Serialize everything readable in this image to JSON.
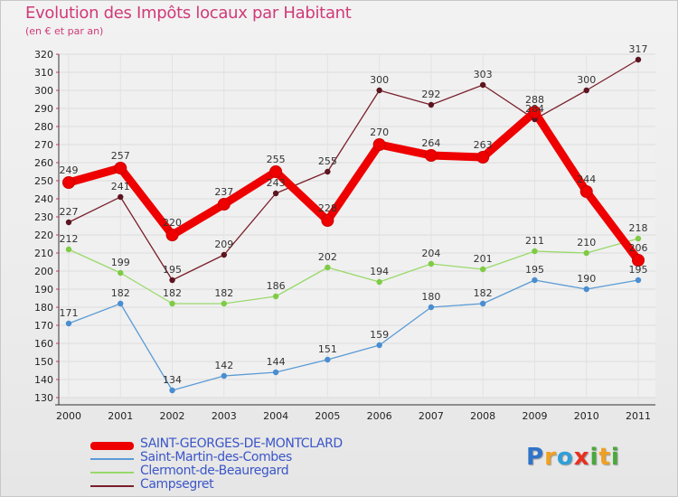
{
  "title": "Evolution des Impôts locaux par Habitant",
  "subtitle": "(en € et par an)",
  "logo": {
    "text": "Proxiti",
    "letters": [
      {
        "ch": "P",
        "color": "#2f74c9"
      },
      {
        "ch": "r",
        "color": "#f0a020"
      },
      {
        "ch": "o",
        "color": "#2f9fd8"
      },
      {
        "ch": "x",
        "color": "#e83020"
      },
      {
        "ch": "i",
        "color": "#4aa83c"
      },
      {
        "ch": "t",
        "color": "#f0a020"
      },
      {
        "ch": "i",
        "color": "#4aa83c"
      }
    ]
  },
  "chart_data": {
    "type": "line",
    "title": "Evolution des Impôts locaux par Habitant",
    "subtitle": "(en € et par an)",
    "x": [
      "2000",
      "2001",
      "2002",
      "2003",
      "2004",
      "2005",
      "2006",
      "2007",
      "2008",
      "2009",
      "2010",
      "2011"
    ],
    "ylim": [
      130,
      320
    ],
    "yticks": [
      130,
      140,
      150,
      160,
      170,
      180,
      190,
      200,
      210,
      220,
      230,
      240,
      250,
      260,
      270,
      280,
      290,
      300,
      310,
      320
    ],
    "grid": true,
    "legend_position": "bottom-left",
    "series": [
      {
        "name": "SAINT-GEORGES-DE-MONTCLARD",
        "color": "#ee0000",
        "values": [
          249,
          257,
          220,
          237,
          255,
          228,
          270,
          264,
          263,
          288,
          244,
          206
        ]
      },
      {
        "name": "Saint-Martin-des-Combes",
        "color": "#5b9bd5",
        "values": [
          171,
          182,
          134,
          142,
          144,
          151,
          159,
          180,
          182,
          195,
          190,
          195
        ]
      },
      {
        "name": "Clermont-de-Beauregard",
        "color": "#99d96a",
        "values": [
          212,
          199,
          182,
          182,
          186,
          202,
          194,
          204,
          201,
          211,
          210,
          218
        ]
      },
      {
        "name": "Campsegret",
        "color": "#7a1f2b",
        "values": [
          227,
          241,
          195,
          209,
          243,
          255,
          300,
          292,
          303,
          284,
          300,
          317
        ]
      }
    ]
  }
}
